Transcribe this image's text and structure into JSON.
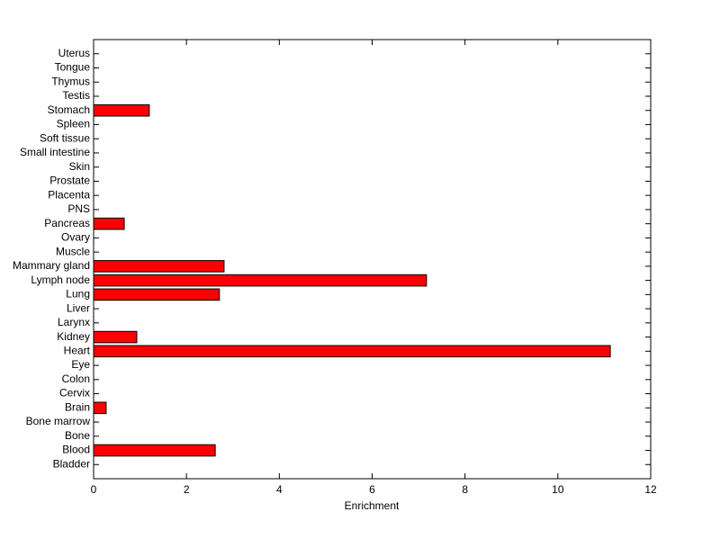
{
  "chart_data": {
    "type": "barh",
    "x_label": "Enrichment",
    "categories": [
      "Bladder",
      "Blood",
      "Bone",
      "Bone marrow",
      "Brain",
      "Cervix",
      "Colon",
      "Eye",
      "Heart",
      "Kidney",
      "Larynx",
      "Liver",
      "Lung",
      "Lymph node",
      "Mammary gland",
      "Muscle",
      "Ovary",
      "Pancreas",
      "PNS",
      "Placenta",
      "Prostate",
      "Skin",
      "Small intestine",
      "Soft tissue",
      "Spleen",
      "Stomach",
      "Testis",
      "Thymus",
      "Tongue",
      "Uterus"
    ],
    "values": [
      0,
      2.62,
      0,
      0,
      0.27,
      0,
      0,
      0,
      11.13,
      0.93,
      0,
      0,
      2.71,
      7.17,
      2.81,
      0,
      0,
      0.66,
      0,
      0,
      0,
      0,
      0,
      0,
      0,
      1.2,
      0,
      0,
      0,
      0
    ],
    "color": "#ff0000",
    "xlim": [
      0,
      12
    ],
    "xticks": [
      0,
      2,
      4,
      6,
      8,
      10,
      12
    ]
  }
}
